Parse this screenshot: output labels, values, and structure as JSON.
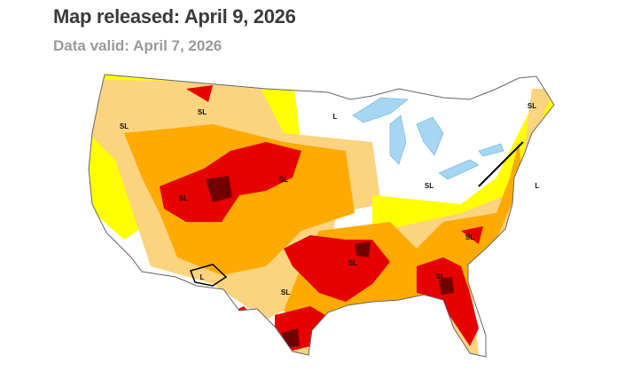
{
  "header": {
    "title": "Map released: April 9, 2026",
    "subtitle": "Data valid: April 7, 2026"
  },
  "map": {
    "labels": [
      "SL",
      "SL",
      "L",
      "SL",
      "SL",
      "SL",
      "SL",
      "L",
      "SL",
      "SL",
      "SL",
      "SL",
      "L"
    ]
  }
}
